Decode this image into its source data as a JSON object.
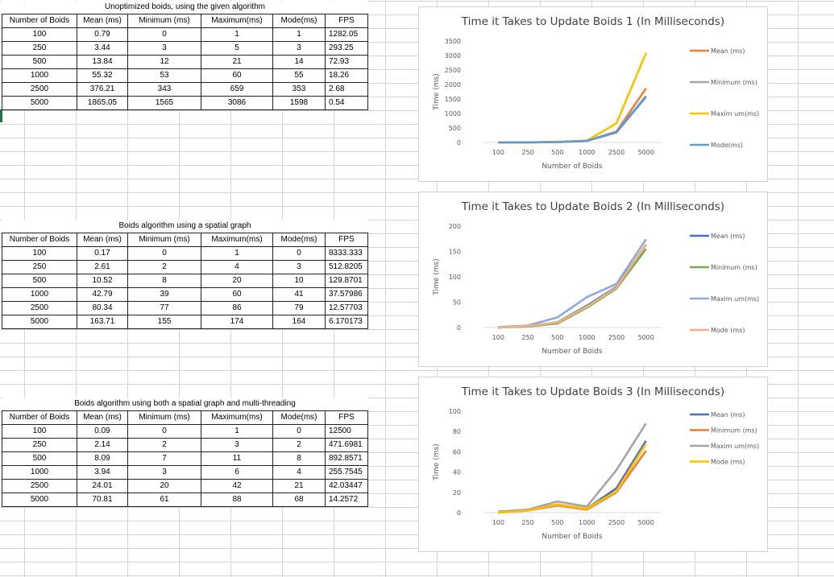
{
  "tables": [
    {
      "title": "Unoptimized boids, using the given algorithm",
      "headers": [
        "Number of Boids",
        "Mean (ms)",
        "Minimum (ms)",
        "Maximum(ms)",
        "Mode(ms)",
        "FPS"
      ],
      "rows": [
        [
          "100",
          "0.79",
          "0",
          "1",
          "1",
          "1282.05"
        ],
        [
          "250",
          "3.44",
          "3",
          "5",
          "3",
          "293.25"
        ],
        [
          "500",
          "13.84",
          "12",
          "21",
          "14",
          "72.93"
        ],
        [
          "1000",
          "55.32",
          "53",
          "60",
          "55",
          "18.26"
        ],
        [
          "2500",
          "376.21",
          "343",
          "659",
          "353",
          "2.68"
        ],
        [
          "5000",
          "1865.05",
          "1565",
          "3086",
          "1598",
          "0.54"
        ]
      ]
    },
    {
      "title": "Boids algorithm using a spatial graph",
      "headers": [
        "Number of Boids",
        "Mean (ms)",
        "Minimum (ms)",
        "Maximum(ms)",
        "Mode(ms)",
        "FPS"
      ],
      "rows": [
        [
          "100",
          "0.17",
          "0",
          "1",
          "0",
          "8333.333"
        ],
        [
          "250",
          "2.61",
          "2",
          "4",
          "3",
          "512.8205"
        ],
        [
          "500",
          "10.52",
          "8",
          "20",
          "10",
          "129.8701"
        ],
        [
          "1000",
          "42.79",
          "39",
          "60",
          "41",
          "37.57986"
        ],
        [
          "2500",
          "80.34",
          "77",
          "86",
          "79",
          "12.57703"
        ],
        [
          "5000",
          "163.71",
          "155",
          "174",
          "164",
          "6.170173"
        ]
      ]
    },
    {
      "title": "Boids algorithm using both a spatial graph and multi-threading",
      "headers": [
        "Number of Boids",
        "Mean (ms)",
        "Minimum (ms)",
        "Maximum(ms)",
        "Mode(ms)",
        "FPS"
      ],
      "rows": [
        [
          "100",
          "0.09",
          "0",
          "1",
          "0",
          "12500"
        ],
        [
          "250",
          "2.14",
          "2",
          "3",
          "2",
          "471.6981"
        ],
        [
          "500",
          "8.09",
          "7",
          "11",
          "8",
          "892.8571"
        ],
        [
          "1000",
          "3.94",
          "3",
          "6",
          "4",
          "255.7545"
        ],
        [
          "2500",
          "24.01",
          "20",
          "42",
          "21",
          "42.03447"
        ],
        [
          "5000",
          "70.81",
          "61",
          "88",
          "68",
          "14.2572"
        ]
      ]
    }
  ],
  "chart_data": [
    {
      "type": "line",
      "title": "Time it Takes to Update Boids 1 (In Milliseconds)",
      "xlabel": "Number of Boids",
      "ylabel": "Time (ms)",
      "categories": [
        "100",
        "250",
        "500",
        "1000",
        "2500",
        "5000"
      ],
      "ylim": [
        0,
        3500
      ],
      "yticks": [
        0,
        500,
        1000,
        1500,
        2000,
        2500,
        3000,
        3500
      ],
      "legend_position": "right",
      "series": [
        {
          "name": "Mean (ms)",
          "color": "#ED7D31",
          "values": [
            0.79,
            3.44,
            13.84,
            55.32,
            376.21,
            1865.05
          ]
        },
        {
          "name": "Minimum (ms)",
          "color": "#A5A5A5",
          "values": [
            0,
            3,
            12,
            53,
            343,
            1565
          ]
        },
        {
          "name": "Maxim um(ms)",
          "color": "#FFC000",
          "values": [
            1,
            5,
            21,
            60,
            659,
            3086
          ]
        },
        {
          "name": "Mode(ms)",
          "color": "#5B9BD5",
          "values": [
            1,
            3,
            14,
            55,
            353,
            1598
          ]
        }
      ]
    },
    {
      "type": "line",
      "title": "Time it Takes to Update Boids 2 (In Milliseconds)",
      "xlabel": "Number of Boids",
      "ylabel": "Time (ms)",
      "categories": [
        "100",
        "250",
        "500",
        "1000",
        "2500",
        "5000"
      ],
      "ylim": [
        0,
        200
      ],
      "yticks": [
        0,
        50,
        100,
        150,
        200
      ],
      "legend_position": "right",
      "series": [
        {
          "name": "Mean (ms)",
          "color": "#4472C4",
          "values": [
            0.17,
            2.61,
            10.52,
            42.79,
            80.34,
            163.71
          ]
        },
        {
          "name": "Minimum (ms)",
          "color": "#70AD47",
          "values": [
            0,
            2,
            8,
            39,
            77,
            155
          ]
        },
        {
          "name": "Maxim um(ms)",
          "color": "#8EA9DB",
          "values": [
            1,
            4,
            20,
            60,
            86,
            174
          ]
        },
        {
          "name": "Mode (ms)",
          "color": "#F4B183",
          "values": [
            0,
            3,
            10,
            41,
            79,
            164
          ]
        }
      ]
    },
    {
      "type": "line",
      "title": "Time it Takes to Update Boids 3 (In Milliseconds)",
      "xlabel": "Number of Boids",
      "ylabel": "Time (ms)",
      "categories": [
        "100",
        "250",
        "500",
        "1000",
        "2500",
        "5000"
      ],
      "ylim": [
        0,
        100
      ],
      "yticks": [
        0,
        20,
        40,
        60,
        80,
        100
      ],
      "legend_position": "right",
      "series": [
        {
          "name": "Mean (ms)",
          "color": "#4472C4",
          "values": [
            0.09,
            2.14,
            8.09,
            3.94,
            24.01,
            70.81
          ]
        },
        {
          "name": "Minimum (ms)",
          "color": "#ED7D31",
          "values": [
            0,
            2,
            7,
            3,
            20,
            61
          ]
        },
        {
          "name": "Maxim um(ms)",
          "color": "#A5A5A5",
          "values": [
            1,
            3,
            11,
            6,
            42,
            88
          ]
        },
        {
          "name": "Mode (ms)",
          "color": "#FFC000",
          "values": [
            0,
            2,
            8,
            4,
            21,
            68
          ]
        }
      ]
    }
  ]
}
